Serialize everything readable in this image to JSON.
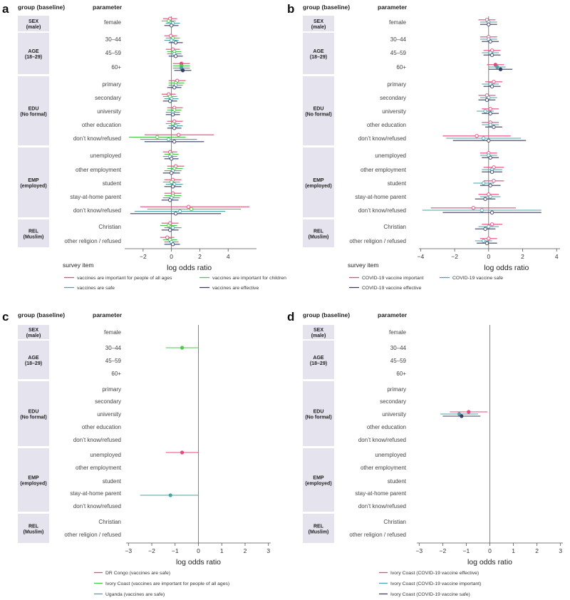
{
  "figure": {
    "header_group": "group (baseline)",
    "header_parameter": "parameter",
    "xlabel": "log odds ratio",
    "legend_title": "survey item"
  },
  "groups": [
    {
      "code": "SEX",
      "baseline": "(male)",
      "params": [
        "female"
      ]
    },
    {
      "code": "AGE",
      "baseline": "(18–29)",
      "params": [
        "30–44",
        "45–59",
        "60+"
      ]
    },
    {
      "code": "EDU",
      "baseline": "(No formal)",
      "params": [
        "primary",
        "secondary",
        "university",
        "other education",
        "don’t know/refused"
      ]
    },
    {
      "code": "EMP",
      "baseline": "(employed)",
      "params": [
        "unemployed",
        "other employment",
        "student",
        "stay-at-home parent",
        "don’t know/refused"
      ]
    },
    {
      "code": "REL",
      "baseline": "(Muslim)",
      "params": [
        "Christian",
        "other religion / refused"
      ]
    }
  ],
  "colors": {
    "pink": "#e8487e",
    "green": "#4cc84a",
    "teal": "#4aa3a6",
    "navy": "#3b3d63",
    "axis": "#888888",
    "group_bg": "#e4e3ee"
  },
  "chart_data": [
    {
      "panel": "a",
      "type": "forest",
      "xlabel": "log odds ratio",
      "xlim": [
        -3.3,
        6
      ],
      "xticks": [
        -2,
        0,
        2,
        4
      ],
      "legend_title": "survey item",
      "series": [
        {
          "name": "vaccines are important for people of all ages",
          "color": "#e8487e",
          "points": [
            [
              -0.1,
              -0.6,
              0.4
            ],
            [
              -0.05,
              -0.5,
              0.4
            ],
            [
              0.1,
              -0.4,
              0.6
            ],
            [
              0.7,
              0.1,
              1.3
            ],
            [
              0.4,
              -0.2,
              1.0
            ],
            [
              -0.2,
              -0.7,
              0.3
            ],
            [
              0.2,
              -0.3,
              0.8
            ],
            [
              0.2,
              -0.3,
              0.8
            ],
            [
              0.5,
              -1.9,
              3.0
            ],
            [
              -0.1,
              -0.6,
              0.4
            ],
            [
              0.3,
              -0.3,
              0.9
            ],
            [
              0.1,
              -0.5,
              0.7
            ],
            [
              0.1,
              -0.5,
              0.7
            ],
            [
              1.2,
              -2.2,
              5.5
            ],
            [
              -0.1,
              -0.7,
              0.5
            ],
            [
              -0.3,
              -0.8,
              0.2
            ]
          ]
        },
        {
          "name": "vaccines are important for children",
          "color": "#4cc84a",
          "points": [
            [
              -0.2,
              -0.7,
              0.3
            ],
            [
              0.1,
              -0.4,
              0.6
            ],
            [
              0.2,
              -0.3,
              0.7
            ],
            [
              0.7,
              0.1,
              1.3
            ],
            [
              0.3,
              -0.2,
              0.9
            ],
            [
              -0.1,
              -0.6,
              0.4
            ],
            [
              0.2,
              -0.3,
              0.7
            ],
            [
              0.1,
              -0.4,
              0.6
            ],
            [
              -1.0,
              -3.0,
              1.0
            ],
            [
              0.0,
              -0.5,
              0.5
            ],
            [
              0.2,
              -0.3,
              0.8
            ],
            [
              0.0,
              -0.6,
              0.6
            ],
            [
              0.1,
              -0.5,
              0.7
            ],
            [
              1.4,
              -1.7,
              4.9
            ],
            [
              -0.2,
              -0.8,
              0.4
            ],
            [
              -0.1,
              -0.6,
              0.4
            ]
          ]
        },
        {
          "name": "vaccines are safe",
          "color": "#4aa3a6",
          "points": [
            [
              0.1,
              -0.4,
              0.6
            ],
            [
              0.0,
              -0.5,
              0.5
            ],
            [
              0.2,
              -0.3,
              0.7
            ],
            [
              0.7,
              0.1,
              1.3
            ],
            [
              0.3,
              -0.2,
              0.8
            ],
            [
              0.0,
              -0.5,
              0.5
            ],
            [
              0.1,
              -0.4,
              0.6
            ],
            [
              0.3,
              -0.2,
              0.8
            ],
            [
              -0.2,
              -2.2,
              1.8
            ],
            [
              -0.1,
              -0.6,
              0.4
            ],
            [
              0.1,
              -0.5,
              0.7
            ],
            [
              0.2,
              -0.4,
              0.8
            ],
            [
              0.0,
              -0.6,
              0.6
            ],
            [
              0.6,
              -2.6,
              3.8
            ],
            [
              0.1,
              -0.5,
              0.7
            ],
            [
              0.0,
              -0.5,
              0.5
            ]
          ]
        },
        {
          "name": "vaccines are effective",
          "color": "#3b3d63",
          "points": [
            [
              0.0,
              -0.5,
              0.5
            ],
            [
              0.3,
              -0.2,
              0.8
            ],
            [
              0.3,
              -0.2,
              0.8
            ],
            [
              0.8,
              0.2,
              1.4
            ],
            [
              0.2,
              -0.3,
              0.7
            ],
            [
              -0.1,
              -0.6,
              0.4
            ],
            [
              0.1,
              -0.4,
              0.6
            ],
            [
              0.2,
              -0.3,
              0.7
            ],
            [
              0.2,
              -1.9,
              2.3
            ],
            [
              0.0,
              -0.5,
              0.5
            ],
            [
              0.0,
              -0.6,
              0.6
            ],
            [
              0.1,
              -0.5,
              0.7
            ],
            [
              -0.1,
              -0.7,
              0.5
            ],
            [
              0.3,
              -2.9,
              3.5
            ],
            [
              -0.1,
              -0.7,
              0.5
            ],
            [
              0.1,
              -0.5,
              0.6
            ]
          ]
        }
      ]
    },
    {
      "panel": "b",
      "type": "forest",
      "xlabel": "log odds ratio",
      "xlim": [
        -4.1,
        4.2
      ],
      "xticks": [
        -4,
        -2,
        0,
        2,
        4
      ],
      "legend_title": "survey item",
      "series": [
        {
          "name": "COVID-19 vaccine important",
          "color": "#e8487e",
          "points": [
            [
              -0.1,
              -0.6,
              0.4
            ],
            [
              0.0,
              -0.5,
              0.5
            ],
            [
              0.2,
              -0.3,
              0.7
            ],
            [
              0.4,
              -0.1,
              0.9
            ],
            [
              0.3,
              -0.2,
              0.8
            ],
            [
              -0.1,
              -0.6,
              0.4
            ],
            [
              0.1,
              -0.4,
              0.6
            ],
            [
              0.1,
              -0.4,
              0.6
            ],
            [
              -0.7,
              -2.7,
              1.3
            ],
            [
              0.0,
              -0.5,
              0.5
            ],
            [
              0.3,
              -0.3,
              0.9
            ],
            [
              0.3,
              -0.3,
              0.9
            ],
            [
              0.0,
              -0.6,
              0.6
            ],
            [
              -0.9,
              -3.4,
              1.6
            ],
            [
              0.2,
              -0.4,
              0.8
            ],
            [
              0.0,
              -0.5,
              0.5
            ]
          ]
        },
        {
          "name": "COVID-19 vaccine safe",
          "color": "#4aa3a6",
          "points": [
            [
              0.0,
              -0.5,
              0.5
            ],
            [
              0.0,
              -0.5,
              0.5
            ],
            [
              0.1,
              -0.4,
              0.6
            ],
            [
              0.5,
              0.0,
              1.0
            ],
            [
              0.1,
              -0.4,
              0.6
            ],
            [
              0.0,
              -0.5,
              0.5
            ],
            [
              -0.2,
              -0.7,
              0.3
            ],
            [
              0.1,
              -0.4,
              0.6
            ],
            [
              -0.3,
              -2.5,
              1.9
            ],
            [
              0.0,
              -0.5,
              0.5
            ],
            [
              0.2,
              -0.4,
              0.8
            ],
            [
              -0.3,
              -0.9,
              0.3
            ],
            [
              0.1,
              -0.5,
              0.7
            ],
            [
              -0.4,
              -3.9,
              3.1
            ],
            [
              0.0,
              -0.6,
              0.6
            ],
            [
              -0.3,
              -0.8,
              0.2
            ]
          ]
        },
        {
          "name": "COVID-19 vaccine effective",
          "color": "#3b3d63",
          "points": [
            [
              0.0,
              -0.5,
              0.5
            ],
            [
              0.1,
              -0.4,
              0.6
            ],
            [
              0.2,
              -0.3,
              0.7
            ],
            [
              0.7,
              0.0,
              1.4
            ],
            [
              0.2,
              -0.3,
              0.7
            ],
            [
              -0.1,
              -0.6,
              0.4
            ],
            [
              0.1,
              -0.4,
              0.6
            ],
            [
              0.3,
              -0.2,
              0.8
            ],
            [
              0.0,
              -2.1,
              2.2
            ],
            [
              0.1,
              -0.4,
              0.6
            ],
            [
              0.2,
              -0.4,
              0.8
            ],
            [
              0.1,
              -0.5,
              0.7
            ],
            [
              -0.2,
              -0.8,
              0.4
            ],
            [
              0.2,
              -2.7,
              3.1
            ],
            [
              -0.2,
              -0.8,
              0.4
            ],
            [
              -0.1,
              -0.7,
              0.5
            ]
          ]
        }
      ]
    },
    {
      "panel": "c",
      "type": "forest",
      "xlabel": "log odds ratio",
      "xlim": [
        -3.1,
        3.1
      ],
      "xticks": [
        -3,
        -2,
        -1,
        0,
        1,
        2,
        3
      ],
      "series": [
        {
          "name": "DR Congo (vaccines are safe)",
          "color": "#e8487e",
          "points": [
            null,
            null,
            null,
            null,
            null,
            null,
            null,
            null,
            null,
            [
              -0.7,
              -1.4,
              0.0
            ],
            null,
            null,
            null,
            null,
            null,
            null
          ]
        },
        {
          "name": "Ivory Coast (vaccines are important for people of all ages)",
          "color": "#4cc84a",
          "points": [
            null,
            [
              -0.7,
              -1.4,
              0.0
            ],
            null,
            null,
            null,
            null,
            null,
            null,
            null,
            null,
            null,
            null,
            null,
            null,
            null,
            null
          ]
        },
        {
          "name": "Uganda (vaccines are safe)",
          "color": "#4aa3a6",
          "points": [
            null,
            null,
            null,
            null,
            null,
            null,
            null,
            null,
            null,
            null,
            null,
            null,
            [
              -1.2,
              -2.5,
              0.0
            ],
            null,
            null,
            null
          ]
        }
      ]
    },
    {
      "panel": "d",
      "type": "forest",
      "xlabel": "log odds ratio",
      "xlim": [
        -3.1,
        3.1
      ],
      "xticks": [
        -3,
        -2,
        -1,
        0,
        1,
        2,
        3
      ],
      "series": [
        {
          "name": "Ivory Coast (COVID-19 vaccine effective)",
          "color": "#e8487e",
          "points": [
            null,
            null,
            null,
            null,
            null,
            null,
            [
              -0.9,
              -1.7,
              -0.1
            ],
            null,
            null,
            null,
            null,
            null,
            null,
            null,
            null,
            null
          ]
        },
        {
          "name": "Ivory Coast (COVID-19 vaccine important)",
          "color": "#4aa3a6",
          "points": [
            null,
            null,
            null,
            null,
            null,
            null,
            [
              -1.3,
              -2.1,
              -0.5
            ],
            null,
            null,
            null,
            null,
            null,
            null,
            null,
            null,
            null
          ]
        },
        {
          "name": "Ivory Coast (COVID-19 vaccine safe)",
          "color": "#3b3d63",
          "points": [
            null,
            null,
            null,
            null,
            null,
            null,
            [
              -1.2,
              -2.0,
              -0.4
            ],
            null,
            null,
            null,
            null,
            null,
            null,
            null,
            null,
            null
          ]
        }
      ]
    }
  ]
}
